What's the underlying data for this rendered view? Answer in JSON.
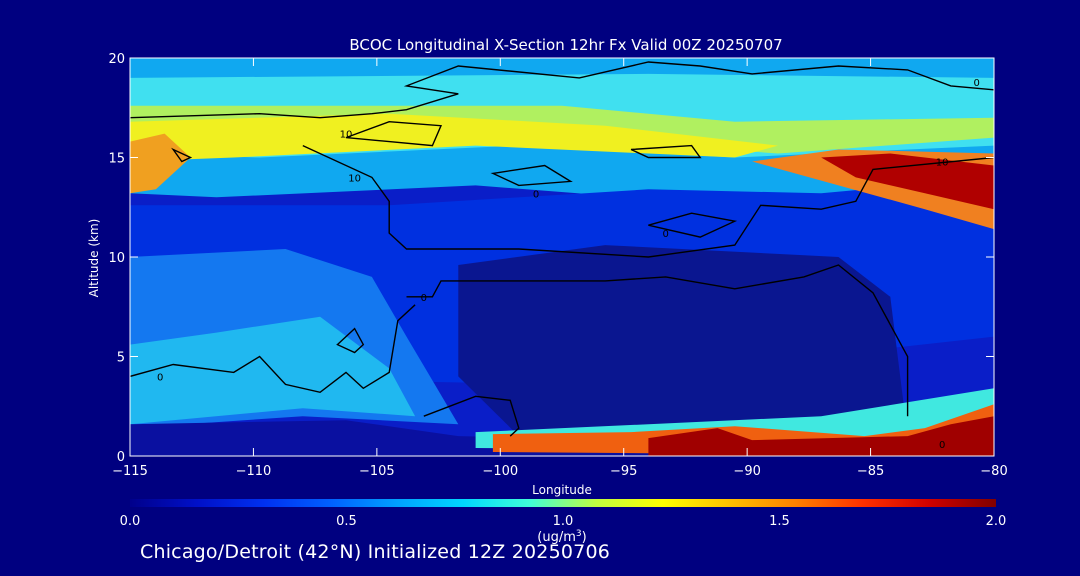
{
  "chart_data": {
    "type": "heatmap",
    "title": "BCOC Longitudinal X-Section 12hr  Fx Valid 00Z 20250707",
    "xlabel": "Longitude",
    "ylabel": "Altitude (km)",
    "xlim": [
      -115,
      -80
    ],
    "ylim": [
      0,
      20
    ],
    "x_ticks": [
      -115,
      -110,
      -105,
      -100,
      -95,
      -90,
      -85,
      -80
    ],
    "x_tick_labels": [
      "−115",
      "−110",
      "−105",
      "−100",
      "−95",
      "−90",
      "−85",
      "−80"
    ],
    "y_ticks": [
      0,
      5,
      10,
      15,
      20
    ],
    "y_tick_labels": [
      "0",
      "5",
      "10",
      "15",
      "20"
    ],
    "colorbar": {
      "min": 0.0,
      "max": 2.0,
      "ticks": [
        0.0,
        0.5,
        1.0,
        1.5,
        2.0
      ],
      "tick_labels": [
        "0.0",
        "0.5",
        "1.0",
        "1.5",
        "2.0"
      ],
      "units_label": "(ug/m",
      "units_exp": "3",
      "units_close": ")"
    },
    "contour_labels": [
      "0",
      "10",
      "10",
      "0",
      "0",
      "0",
      "0",
      "10",
      "0"
    ],
    "colormap": [
      "#00008b",
      "#0010c8",
      "#0030f0",
      "#0060ff",
      "#00a0ff",
      "#00d8ff",
      "#40ffd8",
      "#c0ff40",
      "#ffff00",
      "#ffc000",
      "#ff8000",
      "#ff3000",
      "#d00000",
      "#800000"
    ]
  },
  "footer": "Chicago/Detroit (42°N) Initialized 12Z 20250706",
  "colors": {
    "background": "#000080",
    "axis": "#ffffff",
    "contour": "#000000"
  }
}
